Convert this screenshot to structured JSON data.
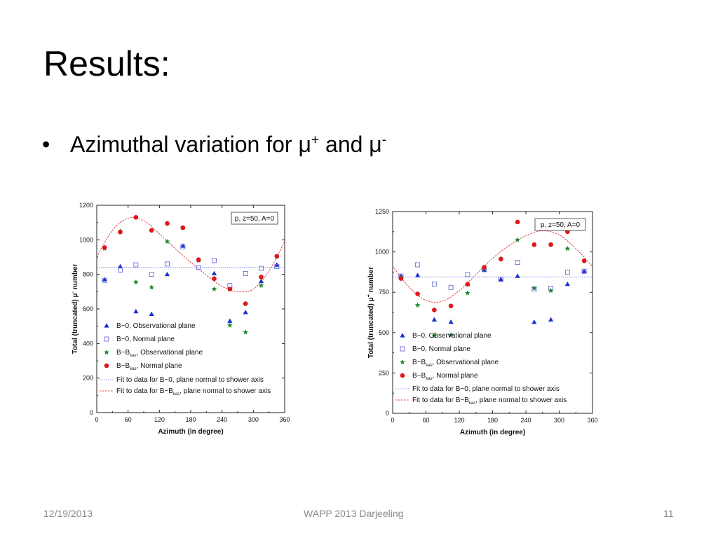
{
  "slide": {
    "title": "Results:",
    "bullet_text": "Azimuthal variation for μ",
    "bullet_sup_plus": "+",
    "bullet_and": " and μ",
    "bullet_sup_minus": "-"
  },
  "footer": {
    "date": "12/19/2013",
    "center": "WAPP 2013  Darjeeling",
    "page": "11"
  },
  "legend_labels": {
    "b0_obs": "B~0, Observational plane",
    "b0_norm": "B~0, Normal plane",
    "bkas_obs_pre": "B~B",
    "bkas_obs_sub": "kas",
    "bkas_obs_post": ", Observational plane",
    "bkas_norm_pre": "B~B",
    "bkas_norm_sub": "kas",
    "bkas_norm_post": ", Normal plane",
    "fit_b0": "Fit to data for B~0, plane normal to shower axis",
    "fit_bkas_pre": "Fit to data for B~B",
    "fit_bkas_sub": "kas",
    "fit_bkas_post": ", plane normal to shower axis"
  },
  "colors": {
    "b0_obs": "#1a2fd0",
    "b0_norm": "#6b6bd6",
    "bkas_obs": "#1e8a2a",
    "bkas_norm": "#e0161b",
    "fit_b0": "#6b7ff0",
    "fit_bkas": "#e0161b"
  },
  "chart_data": [
    {
      "type": "scatter",
      "annotation": "p, z=50, A=0",
      "xlabel": "Azimuth (in degree)",
      "ylabel_pre": "Total (truncated) μ",
      "ylabel_sup": "-",
      "ylabel_post": " number",
      "xlim": [
        0,
        360
      ],
      "ylim": [
        0,
        1200
      ],
      "xticks": [
        0,
        60,
        120,
        180,
        240,
        300,
        360
      ],
      "yticks": [
        0,
        200,
        400,
        600,
        800,
        1000,
        1200
      ],
      "series": [
        {
          "name": "B~0, Observational plane",
          "key": "b0_obs",
          "marker": "triangle",
          "x": [
            15,
            45,
            75,
            105,
            135,
            165,
            195,
            225,
            255,
            285,
            315,
            345
          ],
          "y": [
            770,
            845,
            585,
            570,
            800,
            965,
            885,
            805,
            530,
            580,
            760,
            855
          ]
        },
        {
          "name": "B~0, Normal plane",
          "key": "b0_norm",
          "marker": "square",
          "x": [
            15,
            45,
            75,
            105,
            135,
            165,
            195,
            225,
            255,
            285,
            315,
            345
          ],
          "y": [
            765,
            825,
            855,
            800,
            860,
            960,
            840,
            880,
            735,
            805,
            835,
            845
          ]
        },
        {
          "name": "B~Bkas, Observational plane",
          "key": "bkas_obs",
          "marker": "star",
          "x": [
            15,
            45,
            75,
            105,
            135,
            165,
            195,
            225,
            255,
            285,
            315,
            345
          ],
          "y": [
            950,
            1050,
            755,
            725,
            990,
            1070,
            880,
            715,
            505,
            465,
            735,
            900
          ]
        },
        {
          "name": "B~Bkas, Normal plane",
          "key": "bkas_norm",
          "marker": "circle",
          "x": [
            15,
            45,
            75,
            105,
            135,
            165,
            195,
            225,
            255,
            285,
            315,
            345
          ],
          "y": [
            955,
            1045,
            1130,
            1055,
            1095,
            1070,
            885,
            775,
            715,
            630,
            785,
            905
          ]
        },
        {
          "name": "Fit to data for B~0, plane normal to shower axis",
          "key": "fit_b0",
          "marker": "line",
          "x": [
            0,
            360
          ],
          "y": [
            840,
            840
          ]
        },
        {
          "name": "Fit to data for B~Bkas, plane normal to shower axis",
          "key": "fit_bkas",
          "marker": "curve",
          "x": [
            0,
            30,
            60,
            90,
            120,
            150,
            180,
            210,
            240,
            270,
            300,
            330,
            360
          ],
          "y": [
            900,
            1055,
            1125,
            1110,
            1035,
            950,
            870,
            795,
            730,
            700,
            715,
            820,
            990
          ]
        }
      ]
    },
    {
      "type": "scatter",
      "annotation": "p, z=50, A=0",
      "xlabel": "Azimuth (in degree)",
      "ylabel_pre": "Total (truncated) μ",
      "ylabel_sup": "+",
      "ylabel_post": " number",
      "xlim": [
        0,
        360
      ],
      "ylim": [
        0,
        1250
      ],
      "xticks": [
        0,
        60,
        120,
        180,
        240,
        300,
        360
      ],
      "yticks": [
        0,
        250,
        500,
        750,
        1000,
        1250
      ],
      "series": [
        {
          "name": "B~0, Observational plane",
          "key": "b0_obs",
          "marker": "triangle",
          "x": [
            15,
            45,
            75,
            105,
            135,
            165,
            195,
            225,
            255,
            285,
            315,
            345
          ],
          "y": [
            850,
            855,
            580,
            565,
            800,
            890,
            830,
            850,
            565,
            580,
            800,
            880
          ]
        },
        {
          "name": "B~0, Normal plane",
          "key": "b0_norm",
          "marker": "square",
          "x": [
            15,
            45,
            75,
            105,
            135,
            165,
            195,
            225,
            255,
            285,
            315,
            345
          ],
          "y": [
            850,
            920,
            800,
            780,
            860,
            890,
            830,
            935,
            770,
            775,
            875,
            880
          ]
        },
        {
          "name": "B~Bkas, Observational plane",
          "key": "bkas_obs",
          "marker": "star",
          "x": [
            15,
            45,
            75,
            105,
            135,
            165,
            195,
            225,
            255,
            285,
            315,
            345
          ],
          "y": [
            840,
            670,
            480,
            485,
            745,
            895,
            960,
            1075,
            775,
            760,
            1020,
            945
          ]
        },
        {
          "name": "B~Bkas, Normal plane",
          "key": "bkas_norm",
          "marker": "circle",
          "x": [
            15,
            45,
            75,
            105,
            135,
            165,
            195,
            225,
            255,
            285,
            315,
            345
          ],
          "y": [
            835,
            740,
            640,
            665,
            800,
            905,
            955,
            1185,
            1045,
            1045,
            1125,
            945
          ]
        },
        {
          "name": "Fit to data for B~0, plane normal to shower axis",
          "key": "fit_b0",
          "marker": "line",
          "x": [
            0,
            360
          ],
          "y": [
            845,
            845
          ]
        },
        {
          "name": "Fit to data for B~Bkas, plane normal to shower axis",
          "key": "fit_bkas",
          "marker": "curve",
          "x": [
            0,
            30,
            60,
            90,
            120,
            150,
            180,
            210,
            240,
            270,
            300,
            330,
            360
          ],
          "y": [
            910,
            780,
            700,
            695,
            760,
            860,
            960,
            1040,
            1100,
            1130,
            1105,
            1020,
            910
          ]
        }
      ]
    }
  ]
}
